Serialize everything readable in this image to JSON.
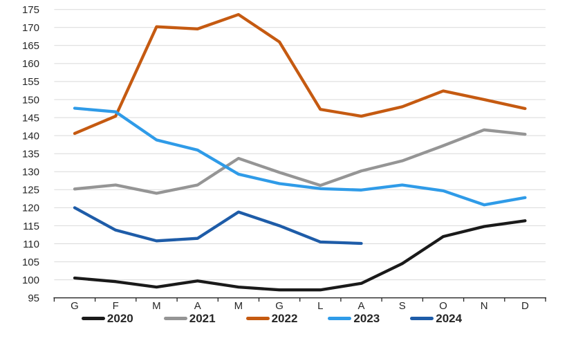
{
  "chart_data": {
    "type": "line",
    "title": "",
    "xlabel": "",
    "ylabel": "",
    "categories": [
      "G",
      "F",
      "M",
      "A",
      "M",
      "G",
      "L",
      "A",
      "S",
      "O",
      "N",
      "D"
    ],
    "series": [
      {
        "name": "2020",
        "color": "#1A1A1A",
        "values": [
          100.5,
          99.5,
          98.0,
          99.7,
          98.0,
          97.2,
          97.2,
          99.0,
          104.5,
          112.0,
          114.8,
          116.4
        ]
      },
      {
        "name": "2021",
        "color": "#959595",
        "values": [
          125.2,
          126.3,
          124.0,
          126.3,
          133.7,
          129.8,
          126.2,
          130.2,
          133.0,
          137.2,
          141.6,
          140.4
        ]
      },
      {
        "name": "2022",
        "color": "#C55A11",
        "values": [
          140.6,
          145.4,
          170.2,
          169.6,
          173.6,
          166.0,
          147.3,
          145.4,
          148.0,
          152.4,
          150.0,
          147.5
        ]
      },
      {
        "name": "2023",
        "color": "#2F9BE8",
        "values": [
          147.6,
          146.6,
          138.8,
          136.0,
          129.3,
          126.7,
          125.3,
          124.9,
          126.3,
          124.7,
          120.8,
          122.8
        ]
      },
      {
        "name": "2024",
        "color": "#1E5CA8",
        "values": [
          120.0,
          113.8,
          110.8,
          111.5,
          118.8,
          115.0,
          110.5,
          110.1
        ]
      }
    ],
    "ylim": [
      95,
      175
    ],
    "yticks": [
      95,
      100,
      105,
      110,
      115,
      120,
      125,
      130,
      135,
      140,
      145,
      150,
      155,
      160,
      165,
      170,
      175
    ],
    "grid": "horizontal",
    "legend_position": "bottom",
    "legend_entries": [
      "2020",
      "2021",
      "2022",
      "2023",
      "2024"
    ]
  },
  "colors": {
    "background": "#FFFFFF",
    "gridline": "#D9D9D9",
    "axis": "#262626",
    "tick_label": "#262626"
  }
}
